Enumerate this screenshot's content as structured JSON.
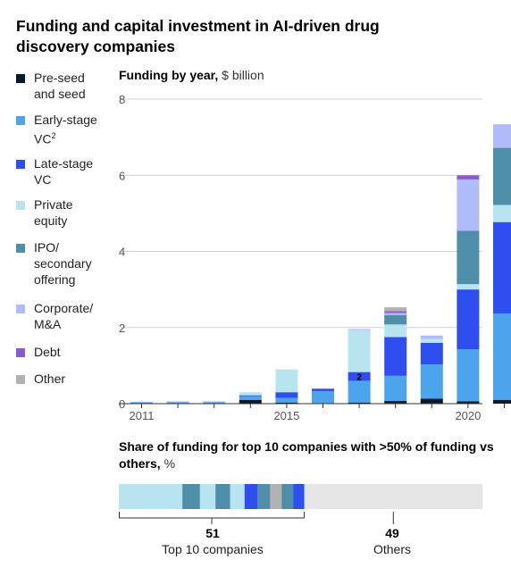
{
  "title": "Funding and capital investment in AI-driven drug discovery companies",
  "legend": [
    {
      "key": "preseed",
      "lines": [
        "Pre-seed",
        "and seed"
      ],
      "sup": "",
      "color": "#0a1a2a"
    },
    {
      "key": "early",
      "lines": [
        "Early-stage",
        "VC"
      ],
      "sup": "2",
      "color": "#4ca4ec"
    },
    {
      "key": "late",
      "lines": [
        "Late-stage",
        "VC"
      ],
      "sup": "",
      "color": "#2f4ef0"
    },
    {
      "key": "pe",
      "lines": [
        "Private",
        "equity"
      ],
      "sup": "",
      "color": "#b8e4ef"
    },
    {
      "key": "ipo",
      "lines": [
        "IPO/",
        "secondary",
        "offering"
      ],
      "sup": "",
      "color": "#4f8ea8"
    },
    {
      "key": "corp",
      "lines": [
        "Corporate/",
        "M&A"
      ],
      "sup": "",
      "color": "#b0bcfa"
    },
    {
      "key": "debt",
      "lines": [
        "Debt"
      ],
      "sup": "",
      "color": "#8a5cd0"
    },
    {
      "key": "other",
      "lines": [
        "Other"
      ],
      "sup": "",
      "color": "#b2b2b2"
    }
  ],
  "chart_title": {
    "bold": "Funding by year,",
    "unit": " $ billion"
  },
  "chart_data": {
    "type": "bar",
    "stacked": true,
    "x": [
      2011,
      2012,
      2013,
      2014,
      2015,
      2016,
      2017,
      2018,
      2019,
      2020,
      2021
    ],
    "x_tick_labels": [
      {
        "year": 2011,
        "label": "2011"
      },
      {
        "year": 2015,
        "label": "2015"
      },
      {
        "year": 2020,
        "label": "2020"
      }
    ],
    "ylim": [
      0,
      8
    ],
    "y_ticks": [
      0,
      2,
      4,
      6,
      8
    ],
    "series": [
      {
        "name": "Pre-seed and seed",
        "values": [
          0.0,
          0.0,
          0.0,
          0.1,
          0.03,
          0.0,
          0.03,
          0.07,
          0.13,
          0.06,
          0.1
        ]
      },
      {
        "name": "Early-stage VC",
        "values": [
          0.04,
          0.04,
          0.04,
          0.1,
          0.12,
          0.33,
          0.57,
          0.66,
          0.9,
          1.37,
          2.27
        ]
      },
      {
        "name": "Late-stage VC",
        "values": [
          0.0,
          0.0,
          0.0,
          0.02,
          0.15,
          0.05,
          0.23,
          1.02,
          0.57,
          1.57,
          2.4
        ]
      },
      {
        "name": "Private equity",
        "values": [
          0.0,
          0.0,
          0.0,
          0.08,
          0.6,
          0.0,
          1.1,
          0.33,
          0.1,
          0.14,
          0.45
        ]
      },
      {
        "name": "IPO/secondary offering",
        "values": [
          0.0,
          0.0,
          0.0,
          0.0,
          0.0,
          0.0,
          0.0,
          0.25,
          0.0,
          1.4,
          1.5
        ]
      },
      {
        "name": "Corporate/M&A",
        "values": [
          0.0,
          0.02,
          0.02,
          0.0,
          0.0,
          0.0,
          0.03,
          0.05,
          0.09,
          1.35,
          0.62
        ]
      },
      {
        "name": "Debt",
        "values": [
          0.0,
          0.0,
          0.0,
          0.0,
          0.0,
          0.02,
          0.0,
          0.05,
          0.0,
          0.11,
          0.0
        ]
      },
      {
        "name": "Other",
        "values": [
          0.0,
          0.0,
          0.0,
          0.0,
          0.0,
          0.0,
          0.0,
          0.1,
          0.0,
          0.0,
          0.0
        ]
      }
    ],
    "annotation": {
      "year": 2017,
      "series": "Late-stage VC",
      "text": "2"
    }
  },
  "share": {
    "title_bold": "Share of funding for top 10 companies with >50% of funding vs others,",
    "title_unit": " %",
    "segments": [
      {
        "pct": 17.5,
        "color": "#b8e4ef"
      },
      {
        "pct": 4.8,
        "color": "#4f8ea8"
      },
      {
        "pct": 4.3,
        "color": "#b8e4ef"
      },
      {
        "pct": 4.0,
        "color": "#4f8ea8"
      },
      {
        "pct": 4.0,
        "color": "#b8e4ef"
      },
      {
        "pct": 3.5,
        "color": "#2f4ef0"
      },
      {
        "pct": 3.5,
        "color": "#4f8ea8"
      },
      {
        "pct": 3.2,
        "color": "#b2b2b2"
      },
      {
        "pct": 3.2,
        "color": "#4f8ea8"
      },
      {
        "pct": 3.0,
        "color": "#2f4ef0"
      },
      {
        "pct": 49.0,
        "color": "#e6e6e6"
      }
    ],
    "top10_value": "51",
    "top10_label": "Top 10 companies",
    "others_value": "49",
    "others_label": "Others"
  }
}
